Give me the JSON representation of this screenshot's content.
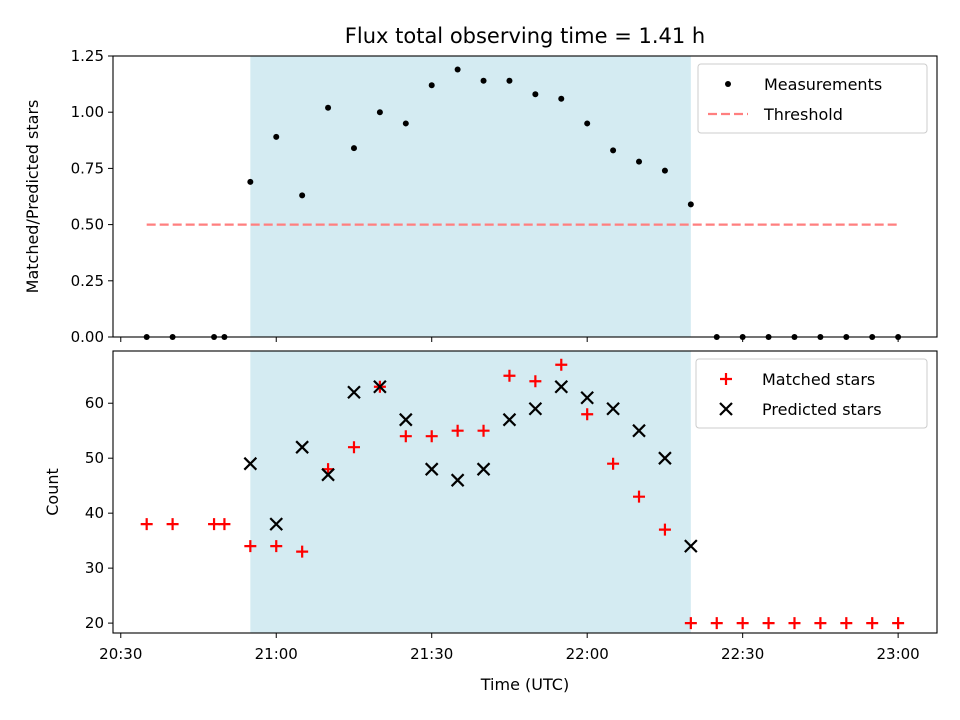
{
  "chart_data": {
    "type": "scatter",
    "title": "Flux total observing time = 1.41 h",
    "xlabel": "Time (UTC)",
    "x_ticks": [
      "20:30",
      "21:00",
      "21:30",
      "22:00",
      "22:30",
      "23:00"
    ],
    "x_tick_minutes": [
      0,
      30,
      60,
      90,
      120,
      150
    ],
    "x_time_origin": "20:30",
    "x_range_minutes": [
      -1.5,
      157.5
    ],
    "highlight_span": {
      "start": "20:55",
      "end": "22:20",
      "color": "#add8e6"
    },
    "panels": [
      {
        "ylabel": "Matched/Predicted stars",
        "ylim": [
          0,
          1.25
        ],
        "yticks": [
          "0.00",
          "0.25",
          "0.50",
          "0.75",
          "1.00",
          "1.25"
        ],
        "ytick_values": [
          0,
          0.25,
          0.5,
          0.75,
          1.0,
          1.25
        ],
        "legend_position": "upper right",
        "series": [
          {
            "name": "Measurements",
            "marker": "dot",
            "color": "#000000",
            "points": [
              [
                "20:35",
                0
              ],
              [
                "20:40",
                0
              ],
              [
                "20:48",
                0
              ],
              [
                "20:50",
                0
              ],
              [
                "20:55",
                0.69
              ],
              [
                "21:00",
                0.89
              ],
              [
                "21:05",
                0.63
              ],
              [
                "21:10",
                1.02
              ],
              [
                "21:15",
                0.84
              ],
              [
                "21:20",
                1.0
              ],
              [
                "21:25",
                0.95
              ],
              [
                "21:30",
                1.12
              ],
              [
                "21:35",
                1.19
              ],
              [
                "21:40",
                1.14
              ],
              [
                "21:45",
                1.14
              ],
              [
                "21:50",
                1.08
              ],
              [
                "21:55",
                1.06
              ],
              [
                "22:00",
                0.95
              ],
              [
                "22:05",
                0.83
              ],
              [
                "22:10",
                0.78
              ],
              [
                "22:15",
                0.74
              ],
              [
                "22:20",
                0.59
              ],
              [
                "22:25",
                0
              ],
              [
                "22:30",
                0
              ],
              [
                "22:35",
                0
              ],
              [
                "22:40",
                0
              ],
              [
                "22:45",
                0
              ],
              [
                "22:50",
                0
              ],
              [
                "22:55",
                0
              ],
              [
                "23:00",
                0
              ]
            ]
          },
          {
            "name": "Threshold",
            "marker": "dashed-line",
            "color": "#ff7f7f",
            "points": [
              [
                "20:35",
                0.5
              ],
              [
                "23:00",
                0.5
              ]
            ]
          }
        ]
      },
      {
        "ylabel": "Count",
        "ylim": [
          18.2,
          69.5
        ],
        "yticks": [
          "20",
          "30",
          "40",
          "50",
          "60"
        ],
        "ytick_values": [
          20,
          30,
          40,
          50,
          60
        ],
        "legend_position": "upper right",
        "series": [
          {
            "name": "Matched stars",
            "marker": "plus",
            "color": "#ff0000",
            "points": [
              [
                "20:35",
                38
              ],
              [
                "20:40",
                38
              ],
              [
                "20:48",
                38
              ],
              [
                "20:50",
                38
              ],
              [
                "20:55",
                34
              ],
              [
                "21:00",
                34
              ],
              [
                "21:05",
                33
              ],
              [
                "21:10",
                48
              ],
              [
                "21:15",
                52
              ],
              [
                "21:20",
                63
              ],
              [
                "21:25",
                54
              ],
              [
                "21:30",
                54
              ],
              [
                "21:35",
                55
              ],
              [
                "21:40",
                55
              ],
              [
                "21:45",
                65
              ],
              [
                "21:50",
                64
              ],
              [
                "21:55",
                67
              ],
              [
                "22:00",
                58
              ],
              [
                "22:05",
                49
              ],
              [
                "22:10",
                43
              ],
              [
                "22:15",
                37
              ],
              [
                "22:20",
                20
              ],
              [
                "22:25",
                20
              ],
              [
                "22:30",
                20
              ],
              [
                "22:35",
                20
              ],
              [
                "22:40",
                20
              ],
              [
                "22:45",
                20
              ],
              [
                "22:50",
                20
              ],
              [
                "22:55",
                20
              ],
              [
                "23:00",
                20
              ]
            ]
          },
          {
            "name": "Predicted stars",
            "marker": "x",
            "color": "#000000",
            "points": [
              [
                "20:55",
                49
              ],
              [
                "21:00",
                38
              ],
              [
                "21:05",
                52
              ],
              [
                "21:10",
                47
              ],
              [
                "21:15",
                62
              ],
              [
                "21:20",
                63
              ],
              [
                "21:25",
                57
              ],
              [
                "21:30",
                48
              ],
              [
                "21:35",
                46
              ],
              [
                "21:40",
                48
              ],
              [
                "21:45",
                57
              ],
              [
                "21:50",
                59
              ],
              [
                "21:55",
                63
              ],
              [
                "22:00",
                61
              ],
              [
                "22:05",
                59
              ],
              [
                "22:10",
                55
              ],
              [
                "22:15",
                50
              ],
              [
                "22:20",
                34
              ]
            ]
          }
        ]
      }
    ]
  }
}
